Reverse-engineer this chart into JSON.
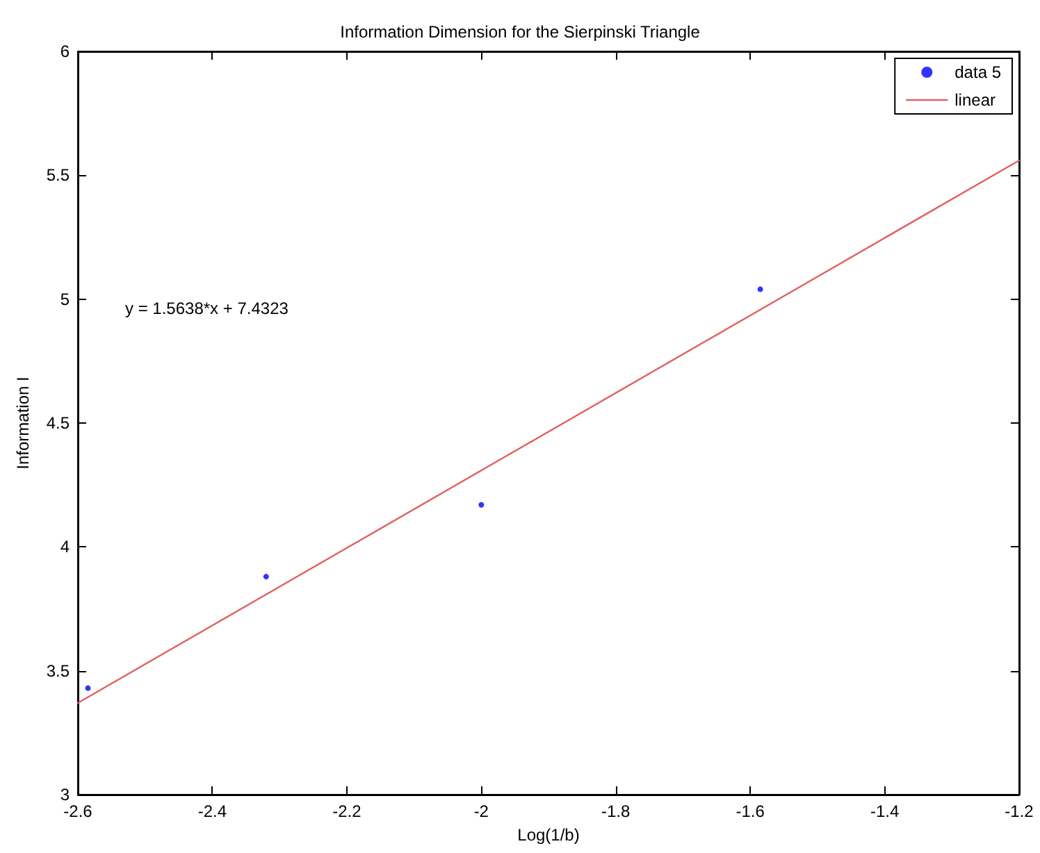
{
  "chart_data": {
    "type": "scatter",
    "title": "Information Dimension for the Sierpinski Triangle",
    "xlabel": "Log(1/b)",
    "ylabel": "Information I",
    "xlim": [
      -2.6,
      -1.2
    ],
    "xticks": [
      -2.6,
      -2.4,
      -2.2,
      -2,
      -1.8,
      -1.6,
      -1.4,
      -1.2
    ],
    "ylim": [
      3,
      6
    ],
    "yticks": [
      3,
      3.5,
      4,
      4.5,
      5,
      5.5,
      6
    ],
    "grid": false,
    "legend": "top right",
    "annotations": [
      "y = 1.5638*x + 7.4323"
    ],
    "series": [
      {
        "name": "data 5",
        "marker": "circle",
        "color": "#0000ff",
        "x": [
          -2.585,
          -2.32,
          -2.0,
          -1.585
        ],
        "values": [
          3.43,
          3.88,
          4.17,
          5.04
        ]
      },
      {
        "name": "linear",
        "type": "line",
        "marker": "none",
        "line_style": "solid",
        "color": "#e06060",
        "x": [
          -2.6,
          -1.2
        ],
        "values": [
          3.37,
          5.56
        ]
      }
    ]
  }
}
